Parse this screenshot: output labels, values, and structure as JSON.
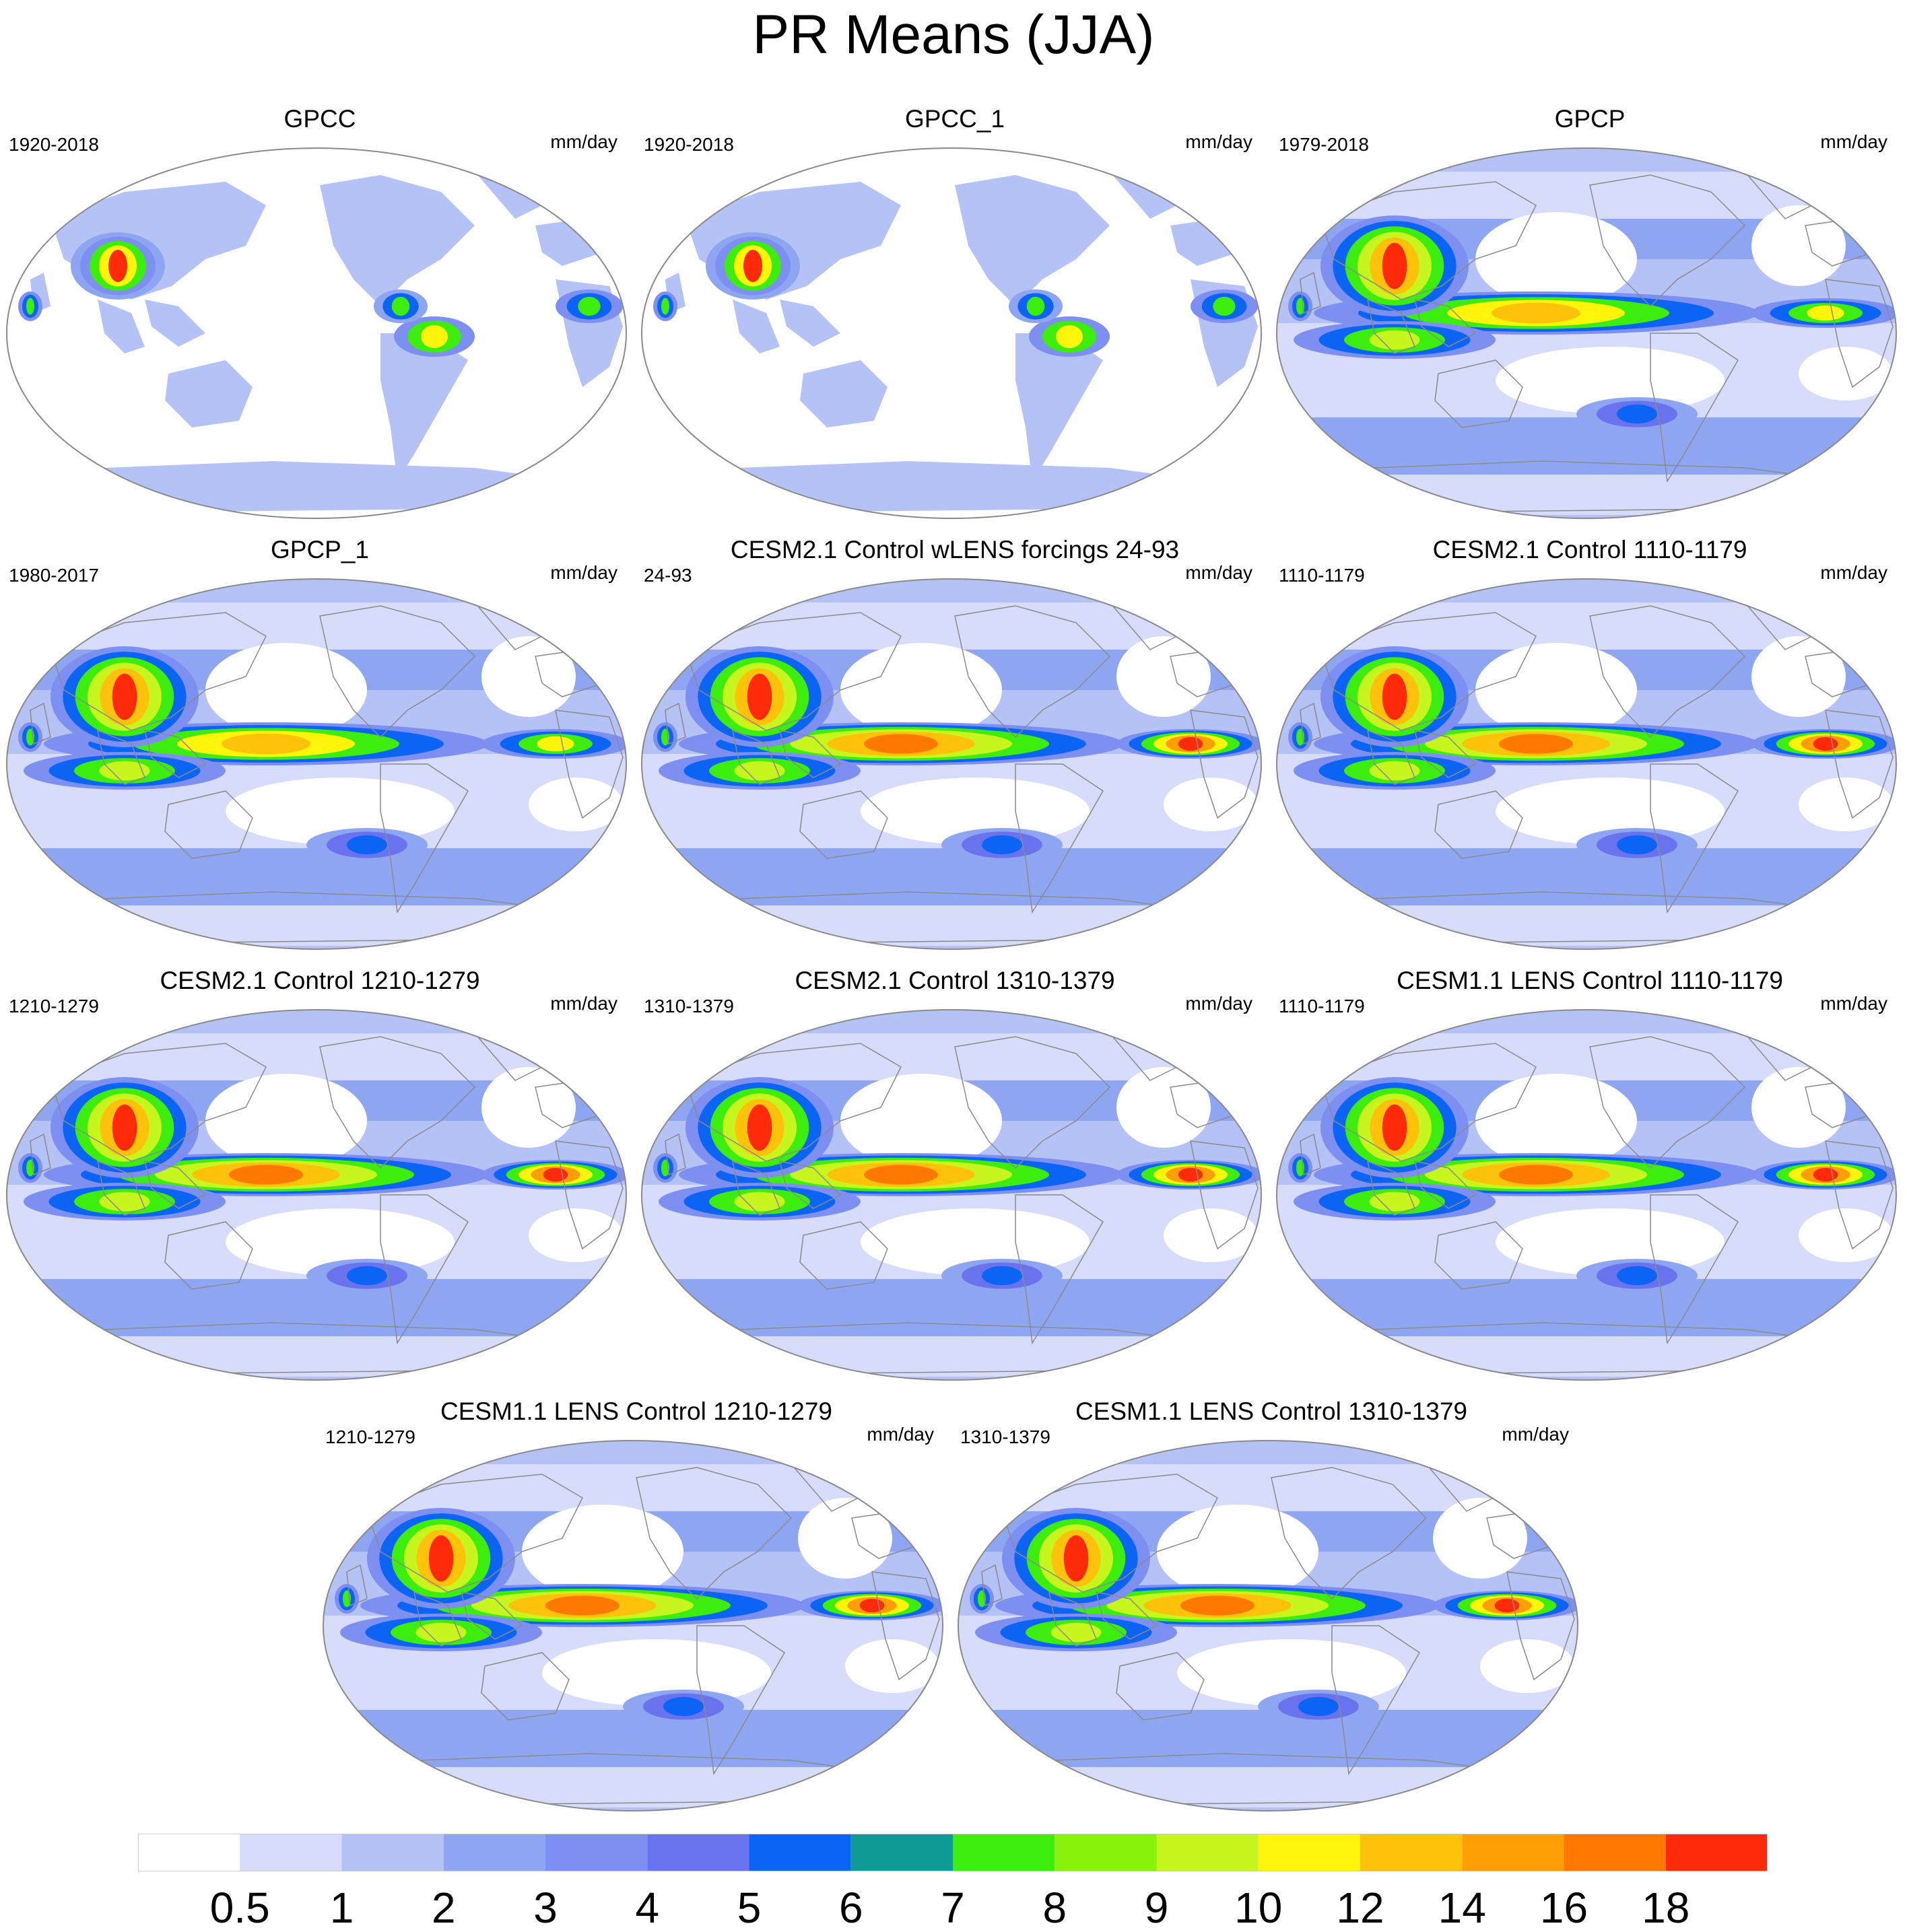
{
  "title": "PR Means (JJA)",
  "units": "mm/day",
  "chart_data": {
    "type": "heatmap",
    "title": "PR Means (JJA)",
    "projection": "Robinson (Pacific-centered)",
    "variable": "precipitation",
    "panels": [
      {
        "title": "GPCC",
        "period": "1920-2018",
        "units": "mm/day",
        "land_only": true
      },
      {
        "title": "GPCC_1",
        "period": "1920-2018",
        "units": "mm/day",
        "land_only": true
      },
      {
        "title": "GPCP",
        "period": "1979-2018",
        "units": "mm/day",
        "land_only": false
      },
      {
        "title": "GPCP_1",
        "period": "1980-2017",
        "units": "mm/day",
        "land_only": false
      },
      {
        "title": "CESM2.1 Control wLENS forcings 24-93",
        "period": "24-93",
        "units": "mm/day",
        "land_only": false
      },
      {
        "title": "CESM2.1 Control 1110-1179",
        "period": "1110-1179",
        "units": "mm/day",
        "land_only": false
      },
      {
        "title": "CESM2.1 Control 1210-1279",
        "period": "1210-1279",
        "units": "mm/day",
        "land_only": false
      },
      {
        "title": "CESM2.1 Control 1310-1379",
        "period": "1310-1379",
        "units": "mm/day",
        "land_only": false
      },
      {
        "title": "CESM1.1 LENS Control 1110-1179",
        "period": "1110-1179",
        "units": "mm/day",
        "land_only": false
      },
      {
        "title": "CESM1.1 LENS Control 1210-1279",
        "period": "1210-1279",
        "units": "mm/day",
        "land_only": false
      },
      {
        "title": "CESM1.1 LENS Control 1310-1379",
        "period": "1310-1379",
        "units": "mm/day",
        "land_only": false
      }
    ],
    "colorbar": {
      "levels": [
        "0.5",
        "1",
        "2",
        "3",
        "4",
        "5",
        "6",
        "7",
        "8",
        "9",
        "10",
        "12",
        "14",
        "16",
        "18"
      ],
      "colors": [
        "#ffffff",
        "#d6dcfa",
        "#b4c2f6",
        "#8ea6f2",
        "#7d8ff0",
        "#6a73ee",
        "#0b64f4",
        "#0f9a96",
        "#3ced0e",
        "#8af30c",
        "#c7f51e",
        "#fff50b",
        "#ffc20a",
        "#ff9f05",
        "#ff7800",
        "#ff2a0a"
      ],
      "orientation": "horizontal",
      "placement": "bottom"
    }
  }
}
